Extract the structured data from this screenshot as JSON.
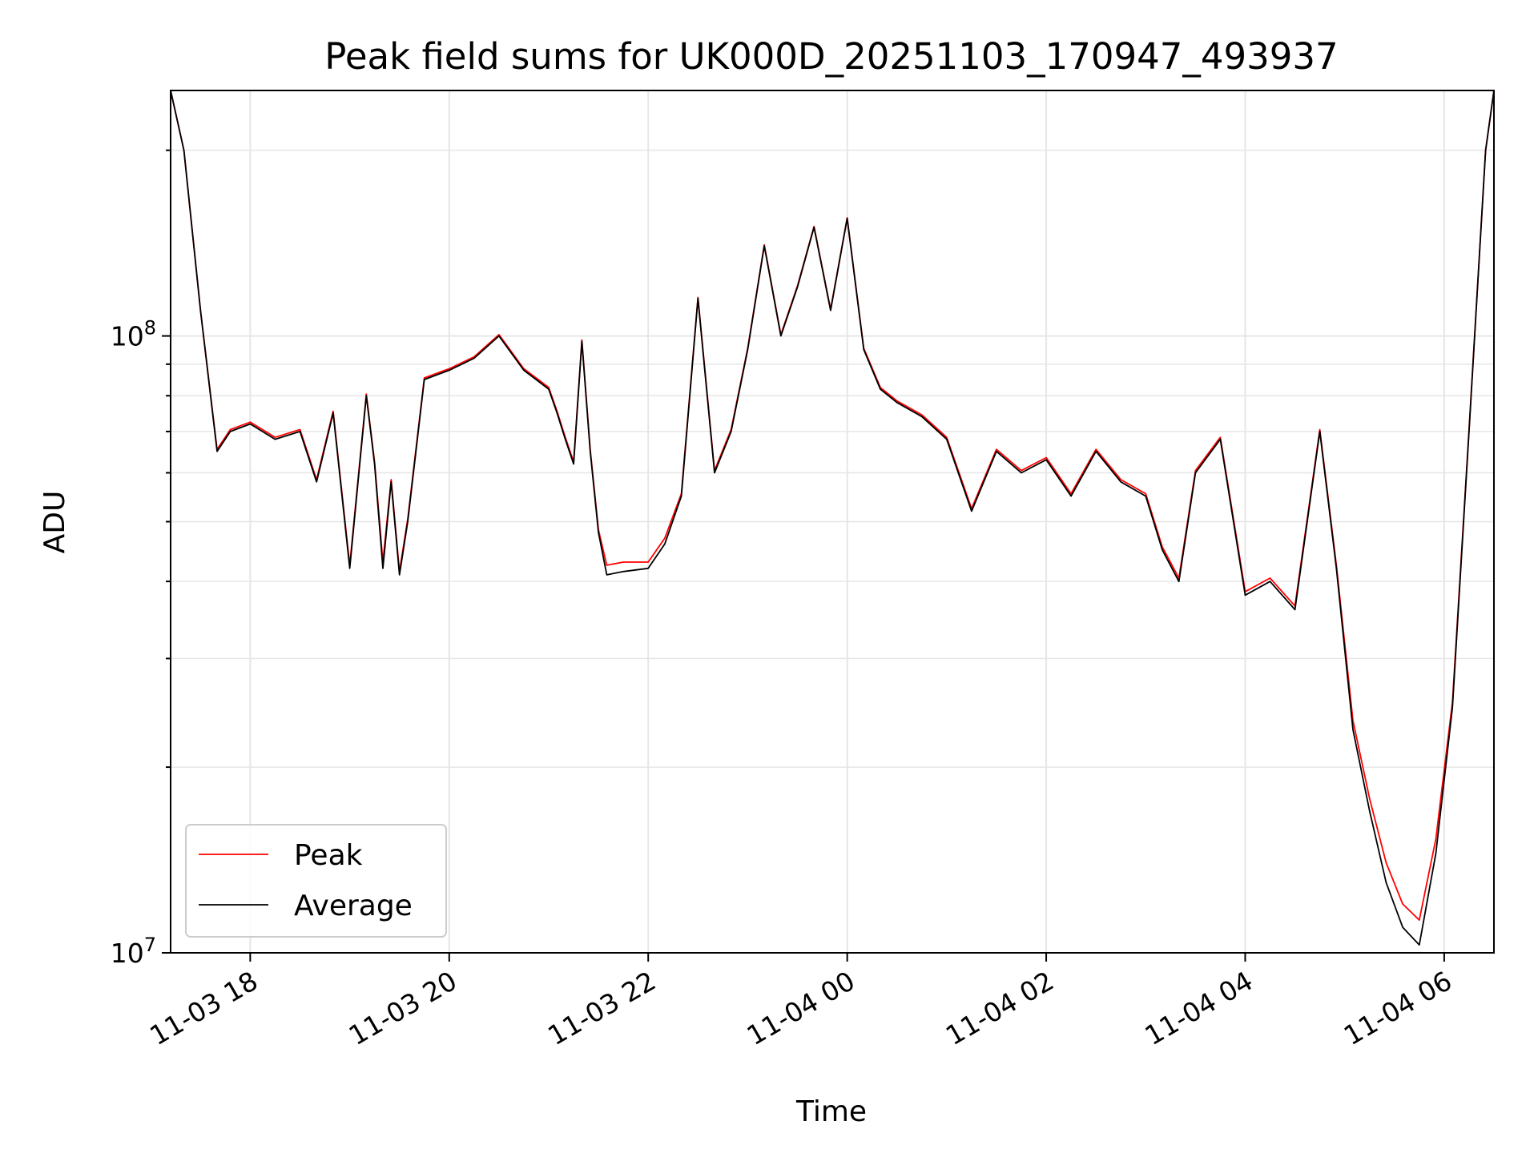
{
  "chart_data": {
    "type": "line",
    "title": "Peak field sums for UK000D_20251103_170947_493937",
    "xlabel": "Time",
    "ylabel": "ADU",
    "yscale": "log",
    "ylim": [
      10000000,
      250000000
    ],
    "xlim": [
      "11-03 17:12",
      "11-04 06:30"
    ],
    "grid": true,
    "legend_position": "lower-left",
    "x_ticks": [
      "11-03 18",
      "11-03 20",
      "11-03 22",
      "11-04 00",
      "11-04 02",
      "11-04 04",
      "11-04 06"
    ],
    "x_tick_times": [
      "11-03 18:00",
      "11-03 20:00",
      "11-03 22:00",
      "11-04 00:00",
      "11-04 02:00",
      "11-04 04:00",
      "11-04 06:00"
    ],
    "y_ticks": [
      {
        "value": 10000000,
        "base": "10",
        "exp": "7"
      },
      {
        "value": 100000000,
        "base": "10",
        "exp": "8"
      }
    ],
    "x": [
      "11-03 17:12",
      "11-03 17:20",
      "11-03 17:30",
      "11-03 17:40",
      "11-03 17:48",
      "11-03 18:00",
      "11-03 18:15",
      "11-03 18:30",
      "11-03 18:40",
      "11-03 18:50",
      "11-03 19:00",
      "11-03 19:10",
      "11-03 19:15",
      "11-03 19:20",
      "11-03 19:25",
      "11-03 19:30",
      "11-03 19:35",
      "11-03 19:45",
      "11-03 20:00",
      "11-03 20:15",
      "11-03 20:30",
      "11-03 20:45",
      "11-03 21:00",
      "11-03 21:05",
      "11-03 21:10",
      "11-03 21:15",
      "11-03 21:20",
      "11-03 21:25",
      "11-03 21:30",
      "11-03 21:35",
      "11-03 21:45",
      "11-03 22:00",
      "11-03 22:10",
      "11-03 22:20",
      "11-03 22:30",
      "11-03 22:40",
      "11-03 22:50",
      "11-03 23:00",
      "11-03 23:10",
      "11-03 23:20",
      "11-03 23:30",
      "11-03 23:40",
      "11-03 23:50",
      "11-04 00:00",
      "11-04 00:10",
      "11-04 00:20",
      "11-04 00:30",
      "11-04 00:45",
      "11-04 01:00",
      "11-04 01:15",
      "11-04 01:30",
      "11-04 01:45",
      "11-04 02:00",
      "11-04 02:15",
      "11-04 02:30",
      "11-04 02:45",
      "11-04 03:00",
      "11-04 03:10",
      "11-04 03:20",
      "11-04 03:30",
      "11-04 03:45",
      "11-04 04:00",
      "11-04 04:15",
      "11-04 04:30",
      "11-04 04:45",
      "11-04 04:55",
      "11-04 05:05",
      "11-04 05:15",
      "11-04 05:25",
      "11-04 05:35",
      "11-04 05:45",
      "11-04 05:55",
      "11-04 06:05",
      "11-04 06:15",
      "11-04 06:25",
      "11-04 06:30"
    ],
    "series": [
      {
        "name": "Average",
        "color": "#000000",
        "values": [
          250000000,
          200000000,
          110000000,
          65000000,
          70000000,
          72000000,
          68000000,
          70000000,
          58000000,
          75000000,
          42000000,
          80000000,
          62000000,
          42000000,
          58000000,
          41000000,
          50000000,
          85000000,
          88000000,
          92000000,
          100000000,
          88000000,
          82000000,
          75000000,
          68000000,
          62000000,
          98000000,
          65000000,
          48000000,
          41000000,
          41500000,
          42000000,
          46000000,
          55000000,
          115000000,
          60000000,
          70000000,
          95000000,
          140000000,
          100000000,
          120000000,
          150000000,
          110000000,
          155000000,
          95000000,
          82000000,
          78000000,
          74000000,
          68000000,
          52000000,
          65000000,
          60000000,
          63000000,
          55000000,
          65000000,
          58000000,
          55000000,
          45000000,
          40000000,
          60000000,
          68000000,
          38000000,
          40000000,
          36000000,
          70000000,
          42000000,
          23000000,
          17000000,
          13000000,
          11000000,
          10300000,
          14500000,
          25000000,
          70000000,
          200000000,
          250000000
        ]
      },
      {
        "name": "Peak",
        "color": "#ff0000",
        "values": [
          250000000,
          200000000,
          110000000,
          65500000,
          70500000,
          72500000,
          68500000,
          70500000,
          58500000,
          75500000,
          42500000,
          80500000,
          62500000,
          43000000,
          58500000,
          41500000,
          50500000,
          85500000,
          88500000,
          92500000,
          100500000,
          88500000,
          82500000,
          75500000,
          68500000,
          62500000,
          98500000,
          65500000,
          48500000,
          42500000,
          43000000,
          43000000,
          47000000,
          55500000,
          115500000,
          60500000,
          70500000,
          95500000,
          140500000,
          100500000,
          120500000,
          150500000,
          110500000,
          155500000,
          95500000,
          82500000,
          78500000,
          74500000,
          68500000,
          52500000,
          65500000,
          60500000,
          63500000,
          55500000,
          65500000,
          58500000,
          55500000,
          45500000,
          40500000,
          60500000,
          68500000,
          38500000,
          40500000,
          36500000,
          70500000,
          42500000,
          23800000,
          17800000,
          14000000,
          12000000,
          11300000,
          15300000,
          25500000,
          70500000,
          200000000,
          250000000
        ]
      }
    ]
  }
}
